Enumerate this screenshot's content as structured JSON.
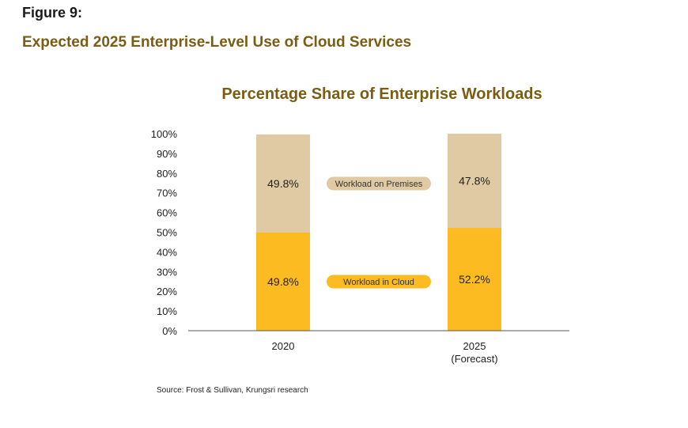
{
  "figure_label": "Figure 9:",
  "figure_title": "Expected 2025 Enterprise-Level Use of Cloud Services",
  "source": "Source: Frost & Sullivan, Krungsri research",
  "colors": {
    "cloud": "#fbbb21",
    "premises": "#e0caa3",
    "title": "#7a5c12"
  },
  "chart_data": {
    "type": "bar",
    "stacked": true,
    "title": "Percentage Share of Enterprise Workloads",
    "categories": [
      [
        "2020"
      ],
      [
        "2025",
        "(Forecast)"
      ]
    ],
    "series": [
      {
        "name": "Workload in Cloud",
        "values": [
          49.8,
          52.2
        ],
        "labels": [
          "49.8%",
          "52.2%"
        ],
        "color": "#fbbb21"
      },
      {
        "name": "Workload on Premises",
        "values": [
          49.8,
          47.8
        ],
        "labels": [
          "49.8%",
          "47.8%"
        ],
        "color": "#e0caa3"
      }
    ],
    "yticks": [
      "0%",
      "10%",
      "20%",
      "30%",
      "40%",
      "50%",
      "60%",
      "70%",
      "80%",
      "90%",
      "100%"
    ],
    "ylim": [
      0,
      100
    ],
    "grid": false,
    "legend_position": "between bars"
  }
}
